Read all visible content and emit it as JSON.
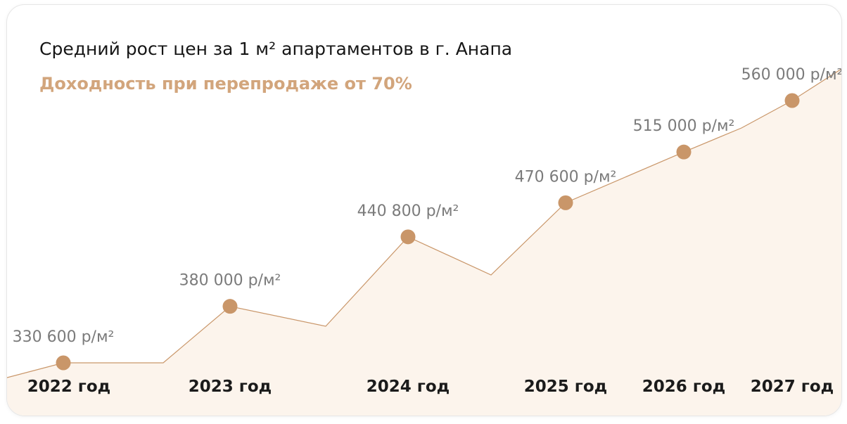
{
  "colors": {
    "accent": "#d2a57c",
    "dot": "#c99669",
    "line": "#c99669",
    "area": "#fcf4ec",
    "text": "#161616",
    "muted": "#7b7b7b"
  },
  "chart_data": {
    "type": "area",
    "title": "Средний рост цен за 1 м² апартаментов в г. Анапа",
    "subtitle": "Доходность при перепродаже от 70%",
    "categories": [
      "2022 год",
      "2023 год",
      "2024 год",
      "2025 год",
      "2026 год",
      "2027 год"
    ],
    "series": [
      {
        "values": [
          330600,
          380000,
          440800,
          470600,
          515000,
          560000
        ],
        "labels": [
          "330 600 р/м²",
          "380 000 р/м²",
          "440 800 р/м²",
          "470 600 р/м²",
          "515 000 р/м²",
          "560 000 р/м²"
        ]
      }
    ],
    "ylim": [
      290000,
      600000
    ],
    "grid": false,
    "legend": "none"
  }
}
